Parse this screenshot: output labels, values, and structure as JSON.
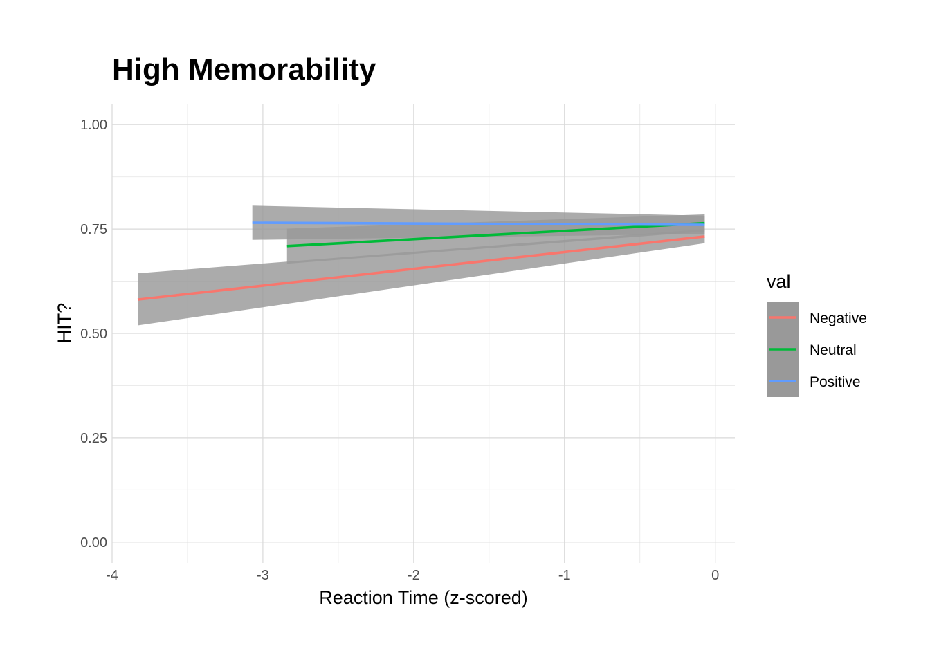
{
  "chart_data": {
    "type": "line",
    "title": "High Memorability",
    "xlabel": "Reaction Time (z-scored)",
    "ylabel": "HIT?",
    "xlim": [
      -4,
      0.13
    ],
    "ylim": [
      -0.05,
      1.05
    ],
    "x_ticks": [
      -4,
      -3,
      -2,
      -1,
      0
    ],
    "x_tick_labels": [
      "-4",
      "-3",
      "-2",
      "-1",
      "0"
    ],
    "y_ticks": [
      0,
      0.25,
      0.5,
      0.75,
      1.0
    ],
    "y_tick_labels": [
      "0.00",
      "0.25",
      "0.50",
      "0.75",
      "1.00"
    ],
    "grid": true,
    "legend": {
      "title": "val",
      "position": "right"
    },
    "confidence_band_color": "#999999",
    "series": [
      {
        "name": "Negative",
        "color": "#F8766D",
        "x": [
          -3.83,
          -0.07
        ],
        "y": [
          0.581,
          0.732
        ],
        "ci_lower": [
          0.519,
          0.716
        ],
        "ci_upper": [
          0.644,
          0.75
        ]
      },
      {
        "name": "Neutral",
        "color": "#00BA38",
        "x": [
          -2.84,
          -0.07
        ],
        "y": [
          0.709,
          0.764
        ],
        "ci_lower": [
          0.667,
          0.744
        ],
        "ci_upper": [
          0.751,
          0.785
        ]
      },
      {
        "name": "Positive",
        "color": "#619CFF",
        "x": [
          -3.07,
          -0.07
        ],
        "y": [
          0.765,
          0.76
        ],
        "ci_lower": [
          0.724,
          0.738
        ],
        "ci_upper": [
          0.806,
          0.782
        ]
      }
    ]
  }
}
